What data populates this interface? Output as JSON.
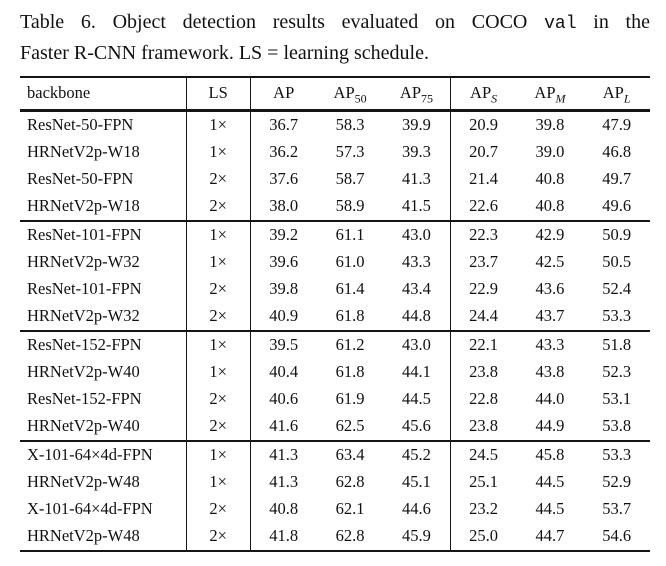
{
  "caption": {
    "prefix": "Table 6. Object detection results evaluated on COCO ",
    "code": "val",
    "suffix": " in the",
    "line2": "Faster R-CNN framework. LS = learning schedule."
  },
  "table": {
    "columns": [
      {
        "key": "backbone",
        "label": "backbone",
        "sub": "",
        "sub_italic": false
      },
      {
        "key": "ls",
        "label": "LS",
        "sub": "",
        "sub_italic": false
      },
      {
        "key": "ap",
        "label": "AP",
        "sub": "",
        "sub_italic": false
      },
      {
        "key": "ap50",
        "label": "AP",
        "sub": "50",
        "sub_italic": false
      },
      {
        "key": "ap75",
        "label": "AP",
        "sub": "75",
        "sub_italic": false
      },
      {
        "key": "aps",
        "label": "AP",
        "sub": "S",
        "sub_italic": true
      },
      {
        "key": "apm",
        "label": "AP",
        "sub": "M",
        "sub_italic": true
      },
      {
        "key": "apl",
        "label": "AP",
        "sub": "L",
        "sub_italic": true
      }
    ],
    "groups": [
      {
        "rows": [
          {
            "backbone": "ResNet-50-FPN",
            "ls": "1×",
            "values": [
              "36.7",
              "58.3",
              "39.9",
              "20.9",
              "39.8",
              "47.9"
            ],
            "bold": [
              false,
              false,
              false,
              false,
              false,
              false
            ]
          },
          {
            "backbone": "HRNetV2p-W18",
            "ls": "1×",
            "values": [
              "36.2",
              "57.3",
              "39.3",
              "20.7",
              "39.0",
              "46.8"
            ],
            "bold": [
              false,
              false,
              false,
              false,
              false,
              false
            ]
          },
          {
            "backbone": "ResNet-50-FPN",
            "ls": "2×",
            "values": [
              "37.6",
              "58.7",
              "41.3",
              "21.4",
              "40.8",
              "49.7"
            ],
            "bold": [
              false,
              false,
              false,
              false,
              true,
              true
            ]
          },
          {
            "backbone": "HRNetV2p-W18",
            "ls": "2×",
            "values": [
              "38.0",
              "58.9",
              "41.5",
              "22.6",
              "40.8",
              "49.6"
            ],
            "bold": [
              true,
              true,
              true,
              true,
              true,
              false
            ]
          }
        ]
      },
      {
        "rows": [
          {
            "backbone": "ResNet-101-FPN",
            "ls": "1×",
            "values": [
              "39.2",
              "61.1",
              "43.0",
              "22.3",
              "42.9",
              "50.9"
            ],
            "bold": [
              false,
              false,
              false,
              false,
              false,
              false
            ]
          },
          {
            "backbone": "HRNetV2p-W32",
            "ls": "1×",
            "values": [
              "39.6",
              "61.0",
              "43.3",
              "23.7",
              "42.5",
              "50.5"
            ],
            "bold": [
              false,
              false,
              false,
              false,
              false,
              false
            ]
          },
          {
            "backbone": "ResNet-101-FPN",
            "ls": "2×",
            "values": [
              "39.8",
              "61.4",
              "43.4",
              "22.9",
              "43.6",
              "52.4"
            ],
            "bold": [
              false,
              false,
              false,
              false,
              false,
              false
            ]
          },
          {
            "backbone": "HRNetV2p-W32",
            "ls": "2×",
            "values": [
              "40.9",
              "61.8",
              "44.8",
              "24.4",
              "43.7",
              "53.3"
            ],
            "bold": [
              true,
              true,
              true,
              true,
              true,
              true
            ]
          }
        ]
      },
      {
        "rows": [
          {
            "backbone": "ResNet-152-FPN",
            "ls": "1×",
            "values": [
              "39.5",
              "61.2",
              "43.0",
              "22.1",
              "43.3",
              "51.8"
            ],
            "bold": [
              false,
              false,
              false,
              false,
              false,
              false
            ]
          },
          {
            "backbone": "HRNetV2p-W40",
            "ls": "1×",
            "values": [
              "40.4",
              "61.8",
              "44.1",
              "23.8",
              "43.8",
              "52.3"
            ],
            "bold": [
              false,
              false,
              false,
              false,
              false,
              false
            ]
          },
          {
            "backbone": "ResNet-152-FPN",
            "ls": "2×",
            "values": [
              "40.6",
              "61.9",
              "44.5",
              "22.8",
              "44.0",
              "53.1"
            ],
            "bold": [
              false,
              false,
              false,
              false,
              false,
              false
            ]
          },
          {
            "backbone": "HRNetV2p-W40",
            "ls": "2×",
            "values": [
              "41.6",
              "62.5",
              "45.6",
              "23.8",
              "44.9",
              "53.8"
            ],
            "bold": [
              true,
              true,
              true,
              true,
              true,
              true
            ]
          }
        ]
      },
      {
        "rows": [
          {
            "backbone": "X-101-64×4d-FPN",
            "ls": "1×",
            "values": [
              "41.3",
              "63.4",
              "45.2",
              "24.5",
              "45.8",
              "53.3"
            ],
            "bold": [
              false,
              true,
              false,
              false,
              true,
              false
            ]
          },
          {
            "backbone": "HRNetV2p-W48",
            "ls": "1×",
            "values": [
              "41.3",
              "62.8",
              "45.1",
              "25.1",
              "44.5",
              "52.9"
            ],
            "bold": [
              false,
              false,
              false,
              true,
              false,
              false
            ]
          },
          {
            "backbone": "X-101-64×4d-FPN",
            "ls": "2×",
            "values": [
              "40.8",
              "62.1",
              "44.6",
              "23.2",
              "44.5",
              "53.7"
            ],
            "bold": [
              false,
              false,
              false,
              false,
              false,
              false
            ]
          },
          {
            "backbone": "HRNetV2p-W48",
            "ls": "2×",
            "values": [
              "41.8",
              "62.8",
              "45.9",
              "25.0",
              "44.7",
              "54.6"
            ],
            "bold": [
              true,
              false,
              true,
              false,
              false,
              true
            ]
          }
        ]
      }
    ],
    "column_widths": {
      "backbone": 166,
      "ls": 64,
      "metric": 66.6
    }
  },
  "colors": {
    "text": "#111111",
    "rule": "#151515",
    "background": "#ffffff"
  }
}
